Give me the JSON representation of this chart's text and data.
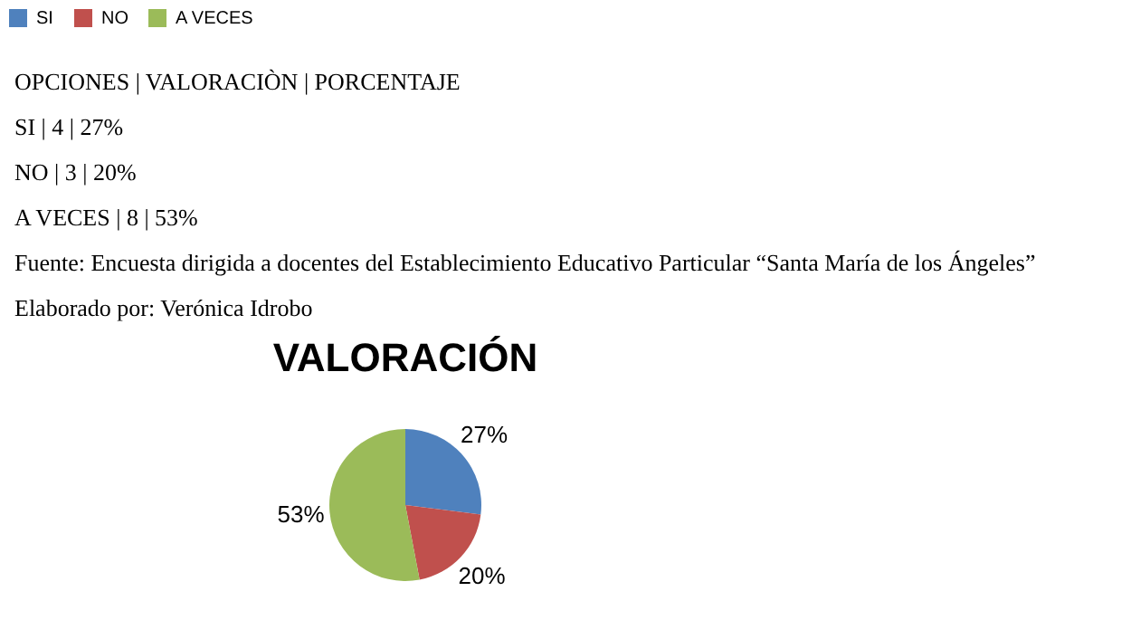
{
  "chart_data": {
    "type": "pie",
    "title": "VALORACIÓN",
    "categories": [
      "SI",
      "NO",
      "A VECES"
    ],
    "values": [
      27,
      20,
      53
    ],
    "value_labels": [
      "27%",
      "20%",
      "53%"
    ],
    "colors": [
      "#4f81bd",
      "#c0504d",
      "#9bbb59"
    ],
    "legend": "top",
    "annotations": [
      "OPCIONES | VALORACIÒN | PORCENTAJE",
      "SI | 4 | 27%",
      "NO | 3 | 20%",
      "A VECES | 8 | 53%",
      "Fuente: Encuesta dirigida a docentes del Establecimiento Educativo Particular “Santa María de los Ángeles”",
      "Elaborado por: Verónica Idrobo"
    ]
  }
}
